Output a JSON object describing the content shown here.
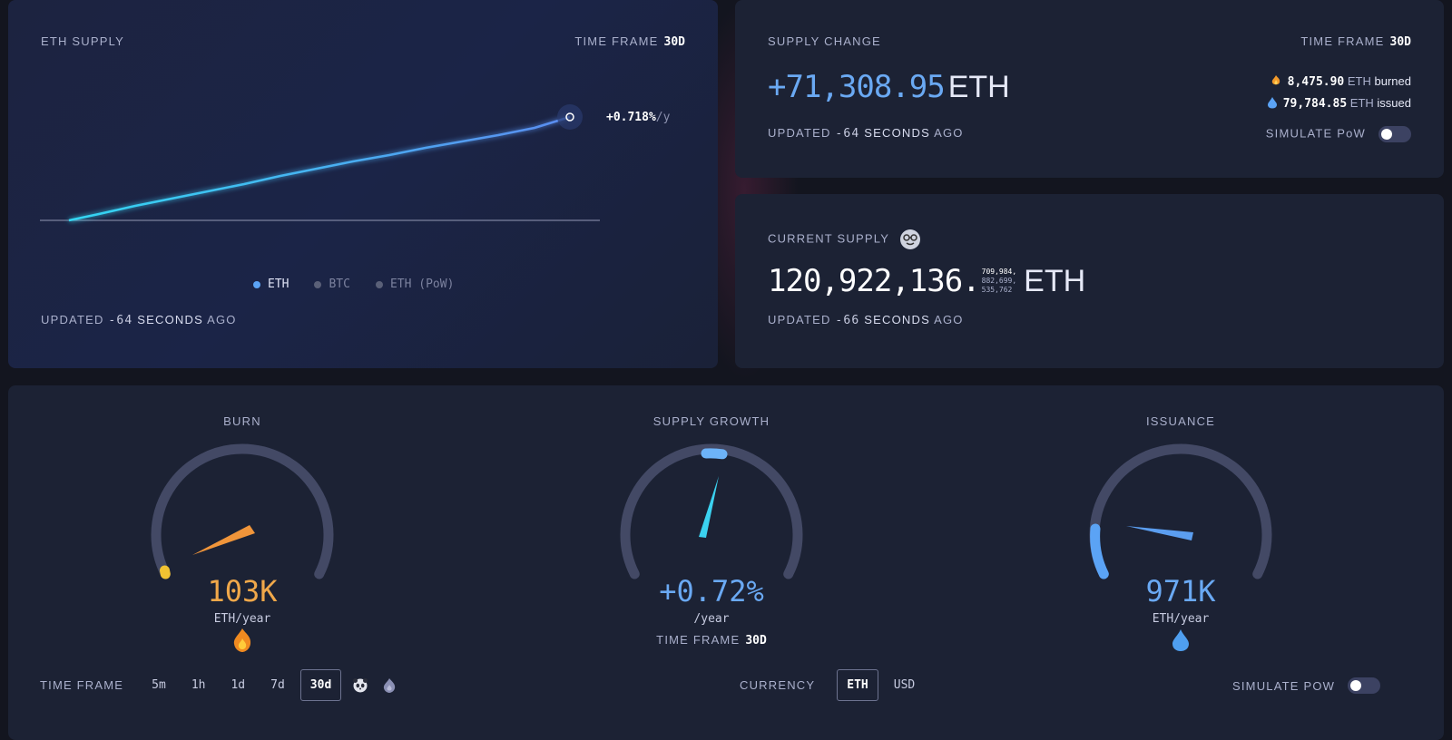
{
  "eth_supply": {
    "title": "ETH SUPPLY",
    "time_frame_label": "TIME FRAME",
    "time_frame_value": "30d",
    "rate_value": "+0.718%",
    "rate_unit": "/y",
    "legend": [
      {
        "label": "ETH",
        "active": true
      },
      {
        "label": "BTC",
        "active": false
      },
      {
        "label": "ETH (PoW)",
        "active": false
      }
    ],
    "updated_prefix": "UPDATED",
    "updated_num": "-64",
    "updated_unit": "SECONDS",
    "updated_suffix": "AGO"
  },
  "supply_change": {
    "title": "SUPPLY CHANGE",
    "time_frame_label": "TIME FRAME",
    "time_frame_value": "30d",
    "value": "+71,308.95",
    "unit": "ETH",
    "burned_value": "8,475.90",
    "burned_unit": "ETH",
    "burned_word": "burned",
    "issued_value": "79,784.85",
    "issued_unit": "ETH",
    "issued_word": "issued",
    "updated_prefix": "UPDATED",
    "updated_num": "-64",
    "updated_unit": "SECONDS",
    "updated_suffix": "AGO",
    "simulate_label": "SIMULATE PoW"
  },
  "current_supply": {
    "title": "CURRENT SUPPLY",
    "value": "120,922,136.",
    "tiny_line1": "709,984,",
    "tiny_line2": "882,699,",
    "tiny_line3": "535,762",
    "unit": "ETH",
    "updated_prefix": "UPDATED",
    "updated_num": "-66",
    "updated_unit": "SECONDS",
    "updated_suffix": "AGO"
  },
  "gauges": {
    "burn": {
      "title": "BURN",
      "value": "103K",
      "unit": "ETH/year",
      "color": "#f0a84a"
    },
    "growth": {
      "title": "SUPPLY GROWTH",
      "value": "+0.72%",
      "unit": "/year",
      "color": "#6aa9f3",
      "time_frame_label": "TIME FRAME",
      "time_frame_value": "30d"
    },
    "issuance": {
      "title": "ISSUANCE",
      "value": "971K",
      "unit": "ETH/year",
      "color": "#6aa9f3"
    }
  },
  "controls": {
    "time_frame_label": "TIME FRAME",
    "time_frames": [
      "5m",
      "1h",
      "1d",
      "7d",
      "30d"
    ],
    "active_time_frame": "30d",
    "currency_label": "CURRENCY",
    "currencies": [
      "ETH",
      "USD"
    ],
    "active_currency": "ETH",
    "simulate_label": "SIMULATE PoW"
  }
}
